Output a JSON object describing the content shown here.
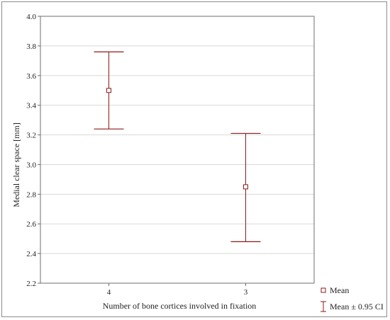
{
  "chart_data": {
    "type": "errorbar",
    "xlabel": "Number of bone cortices involved in fixation",
    "ylabel": "Medial clear space [mm]",
    "ylim": [
      2.2,
      4.0
    ],
    "yticks": [
      "2.2",
      "2.4",
      "2.6",
      "2.8",
      "3.0",
      "3.2",
      "3.4",
      "3.6",
      "3.8",
      "4.0"
    ],
    "ytick_values": [
      2.2,
      2.4,
      2.6,
      2.8,
      3.0,
      3.2,
      3.4,
      3.6,
      3.8,
      4.0
    ],
    "categories": [
      "4",
      "3"
    ],
    "means": [
      3.5,
      2.85
    ],
    "ci_lower": [
      3.24,
      2.48
    ],
    "ci_upper": [
      3.76,
      3.21
    ],
    "grid": true,
    "legend": {
      "placement": "bottom-right",
      "mean_label": "Mean",
      "ci_label": "Mean ± 0.95 CI"
    },
    "colors": {
      "marker": "#8b1a1a",
      "grid": "#d8d8d8",
      "axis": "#6e6e6e"
    }
  }
}
